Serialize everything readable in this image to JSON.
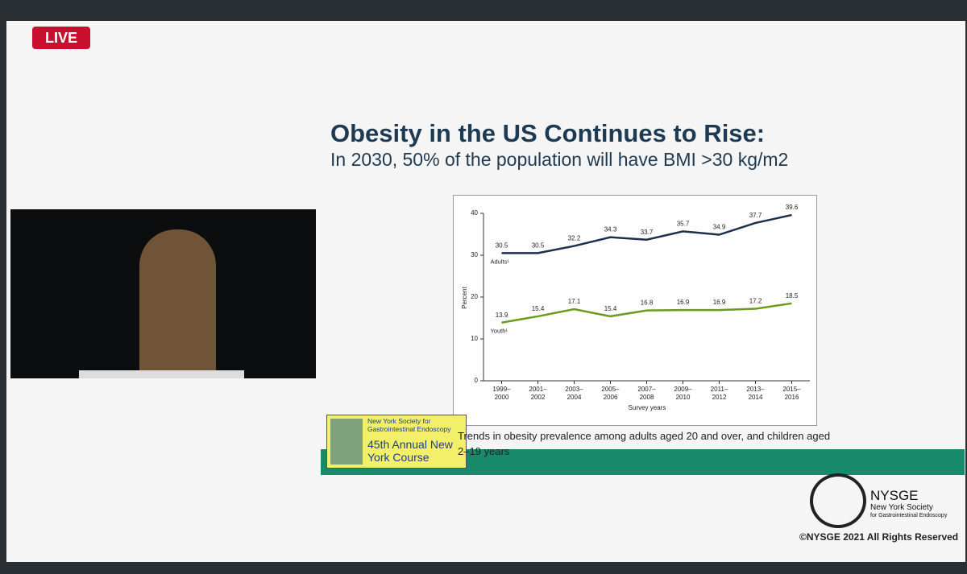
{
  "live_badge": "LIVE",
  "slide": {
    "title": "Obesity in the US Continues to Rise:",
    "subtitle": "In 2030, 50% of the population will have BMI >30 kg/m2",
    "caption": "Trends in obesity prevalence among adults aged 20 and over, and children aged 2–19 years",
    "course_badge": {
      "society": "New York Society for Gastrointestinal Endoscopy",
      "course": "45th Annual New York Course"
    },
    "logo": {
      "name": "NYSGE",
      "line1": "New York Society",
      "line2": "for Gastrointestinal Endoscopy"
    },
    "copyright": "©NYSGE 2021 All Rights Reserved"
  },
  "chart_data": {
    "type": "line",
    "x_label": "Survey years",
    "y_label": "Percent",
    "categories": [
      "1999–2000",
      "2001–2002",
      "2003–2004",
      "2005–2006",
      "2007–2008",
      "2009–2010",
      "2011–2012",
      "2013–2014",
      "2015–2016"
    ],
    "series": [
      {
        "name": "Adults¹",
        "color": "#1d2f4d",
        "values": [
          30.5,
          30.5,
          32.2,
          34.3,
          33.7,
          35.7,
          34.9,
          37.7,
          39.6
        ]
      },
      {
        "name": "Youth¹",
        "color": "#6b9a1e",
        "values": [
          13.9,
          15.4,
          17.1,
          15.4,
          16.8,
          16.9,
          16.9,
          17.2,
          18.5
        ]
      }
    ],
    "ylim": [
      0,
      40
    ],
    "yticks": [
      0,
      10,
      20,
      30,
      40
    ]
  }
}
